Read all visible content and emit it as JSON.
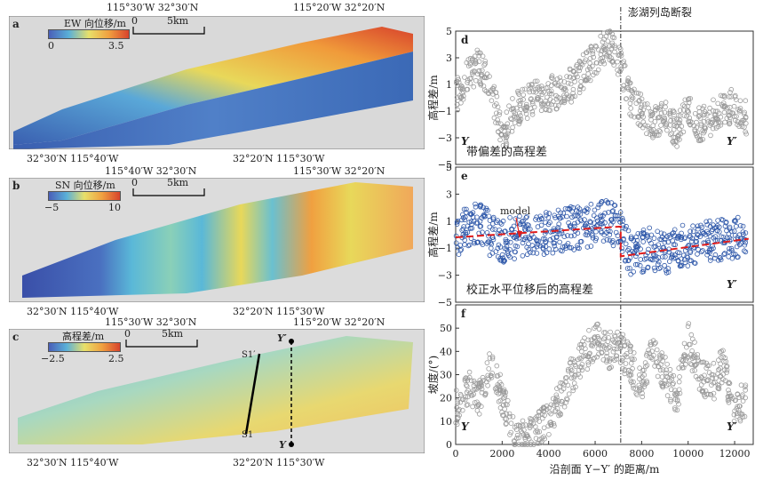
{
  "top_coords": {
    "a_left": "115°30′W  32°30′N",
    "a_right": "115°20′W  32°20′N",
    "b_left": "115°40′W  32°30′N",
    "b_right": "115°30′W  32°20′N",
    "c_left": "115°30′W  32°30′N",
    "c_right": "115°20′W  32°20′N"
  },
  "bottom_coords": {
    "a_left": "32°30′N  115°40′W",
    "a_right": "32°20′N  115°30′W",
    "b_left": "32°30′N  115°40′W",
    "b_right": "32°20′N  115°30′W",
    "c_left": "32°30′N  115°40′W",
    "c_right": "32°20′N  115°30′W"
  },
  "panel_a": {
    "label": "a",
    "cb_title": "EW 向位移/m",
    "cb_min": "0",
    "cb_max": "3.5",
    "scale_zero": "0",
    "scale_text": "5km"
  },
  "panel_b": {
    "label": "b",
    "cb_title": "SN 向位移/m",
    "cb_min": "−5",
    "cb_max": "10",
    "scale_zero": "0",
    "scale_text": "5km"
  },
  "panel_c": {
    "label": "c",
    "cb_title": "高程差/m",
    "cb_min": "−2.5",
    "cb_max": "2.5",
    "scale_zero": "0",
    "scale_text": "5km",
    "s1": "S1",
    "s1p": "S1′",
    "y": "Y",
    "yp": "Y′"
  },
  "colors": {
    "map_blue": "#3a5fb0",
    "map_yellow": "#e8d85a",
    "map_red": "#d8432c",
    "scatter_gray": "#9a9a9a",
    "scatter_blue": "#2b55a8",
    "model_red": "#e01c1c"
  },
  "chart_data": [
    {
      "type": "scatter",
      "panel": "d",
      "title": "带偏差的高程差",
      "annotation": "澎湖列岛断裂",
      "ylabel": "高程差/m",
      "ylim": [
        -5,
        5
      ],
      "yticks": [
        "5",
        "3",
        "1",
        "−1",
        "−3",
        "−5"
      ],
      "fault_x": 7100,
      "start_label": "Y",
      "end_label": "Y′",
      "series": [
        {
          "x": [
            0,
            500,
            1000,
            1500,
            2000,
            2500,
            3000,
            3500,
            4000,
            4500,
            5000,
            5500,
            6000,
            6500,
            7000,
            7500,
            8000,
            8500,
            9000,
            9500,
            10000,
            10500,
            11000,
            11500,
            12000,
            12500
          ],
          "y": [
            0,
            1.5,
            2.5,
            1,
            -3,
            -1,
            -0.3,
            0,
            0.3,
            0.5,
            1,
            2,
            3,
            4,
            3,
            0,
            -1,
            -2,
            -1,
            -2.5,
            -1,
            -2,
            -1.5,
            -1,
            -0.5,
            -1.5
          ]
        }
      ]
    },
    {
      "type": "scatter",
      "panel": "e",
      "title": "校正水平位移后的高程差",
      "annotation": "model",
      "ylabel": "高程差/m",
      "ylim": [
        -5,
        5
      ],
      "yticks": [
        "5",
        "3",
        "1",
        "−1",
        "−3",
        "−5"
      ],
      "fault_x": 7100,
      "end_label": "Y′",
      "series": [
        {
          "x": [
            0,
            500,
            1000,
            1500,
            2000,
            2500,
            3000,
            3500,
            4000,
            4500,
            5000,
            5500,
            6000,
            6500,
            7000,
            7500,
            8000,
            8500,
            9000,
            9500,
            10000,
            10500,
            11000,
            11500,
            12000,
            12500
          ],
          "y": [
            0,
            0.5,
            1,
            0,
            -0.5,
            -0.2,
            0,
            0.2,
            0.1,
            0.3,
            0.5,
            0.4,
            0.8,
            1,
            0.6,
            -1.5,
            -1.2,
            -1,
            -1.5,
            -0.8,
            -1,
            -0.6,
            -0.5,
            -0.4,
            -0.3,
            -0.2
          ]
        }
      ],
      "model": {
        "x": [
          0,
          7100,
          7100,
          12600
        ],
        "y": [
          -0.2,
          0.6,
          -1.6,
          -0.3
        ]
      }
    },
    {
      "type": "scatter",
      "panel": "f",
      "ylabel": "坡度/(°)",
      "xlabel": "沿剖面 Y−Y′ 的距离/m",
      "ylim": [
        0,
        60
      ],
      "yticks": [
        "50",
        "40",
        "30",
        "20",
        "10",
        "0"
      ],
      "xlim": [
        0,
        12800
      ],
      "xticks": [
        "0",
        "2000",
        "4000",
        "6000",
        "8000",
        "10000",
        "12000"
      ],
      "fault_x": 7100,
      "start_label": "Y",
      "end_label": "Y′",
      "series": [
        {
          "x": [
            0,
            500,
            1000,
            1500,
            2000,
            2500,
            3000,
            3500,
            4000,
            4500,
            5000,
            5500,
            6000,
            6500,
            7000,
            7500,
            8000,
            8500,
            9000,
            9500,
            10000,
            10500,
            11000,
            11500,
            12000,
            12500
          ],
          "y": [
            15,
            25,
            20,
            35,
            20,
            3,
            2,
            5,
            12,
            20,
            30,
            38,
            45,
            40,
            42,
            35,
            25,
            40,
            30,
            20,
            45,
            30,
            25,
            35,
            15,
            20
          ]
        }
      ]
    }
  ]
}
